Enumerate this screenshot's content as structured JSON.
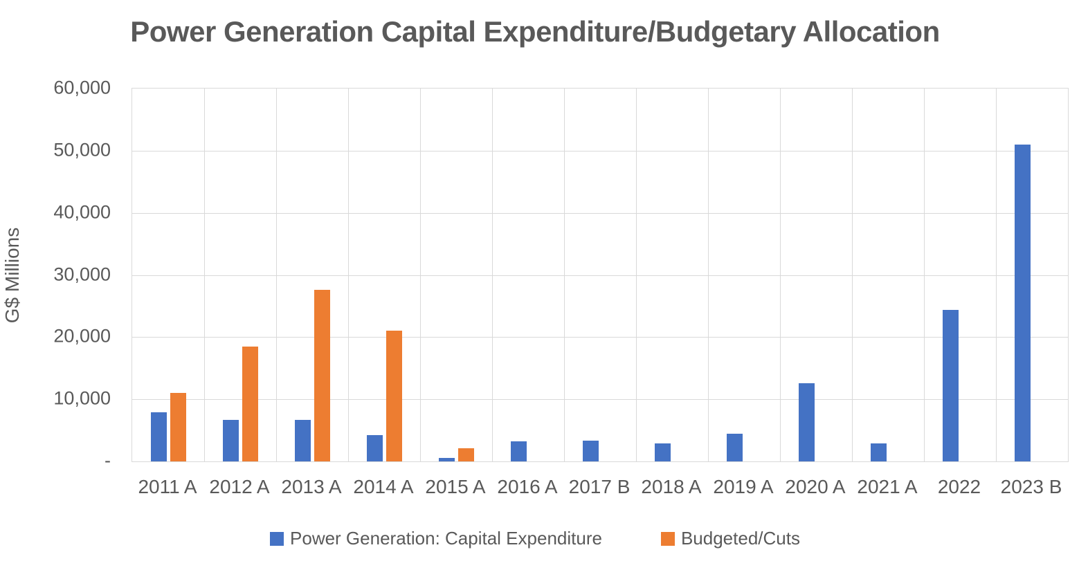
{
  "chart_data": {
    "type": "bar",
    "title": "Power Generation Capital Expenditure/Budgetary Allocation",
    "xlabel": "",
    "ylabel": "G$ Millions",
    "categories": [
      "2011 A",
      "2012 A",
      "2013 A",
      "2014 A",
      "2015 A",
      "2016 A",
      "2017 B",
      "2018 A",
      "2019 A",
      "2020 A",
      "2021 A",
      "2022",
      "2023 B"
    ],
    "series": [
      {
        "name": "Power Generation: Capital Expenditure",
        "color": "#4472C4",
        "values": [
          7900,
          6700,
          6700,
          4200,
          600,
          3200,
          3300,
          2900,
          4400,
          12600,
          2900,
          24400,
          51000
        ]
      },
      {
        "name": "Budgeted/Cuts",
        "color": "#ED7D31",
        "values": [
          11000,
          18500,
          27600,
          21000,
          2100,
          null,
          null,
          null,
          null,
          null,
          null,
          null,
          null
        ]
      }
    ],
    "ylim": [
      0,
      60000
    ],
    "ytick_interval": 10000,
    "ytick_labels": [
      "-",
      "10,000",
      "20,000",
      "30,000",
      "40,000",
      "50,000",
      "60,000"
    ],
    "grid": true,
    "legend_position": "bottom",
    "colors": {
      "text": "#595959",
      "gridline": "#D9D9D9",
      "background": "#FFFFFF"
    }
  }
}
